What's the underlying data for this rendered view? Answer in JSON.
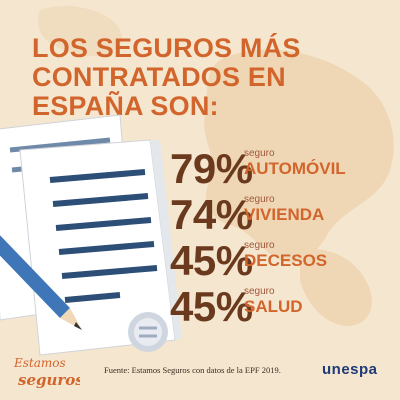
{
  "title": {
    "line1": "LOS SEGUROS MÁS",
    "line2": "CONTRATADOS EN",
    "line3": "ESPAÑA SON:"
  },
  "stats": [
    {
      "percent": "79%",
      "small": "seguro",
      "name": "AUTOMÓVIL"
    },
    {
      "percent": "74%",
      "small": "seguro",
      "name": "VIVIENDA"
    },
    {
      "percent": "45%",
      "small": "seguro",
      "name": "DECESOS"
    },
    {
      "percent": "45%",
      "small": "seguro",
      "name": "SALUD"
    }
  ],
  "footer": {
    "brand_left_line1": "Estamos",
    "brand_left_line2": "seguros",
    "source": "Fuente: Estamos Seguros con datos de la EPF 2019.",
    "brand_right": "unespa"
  },
  "colors": {
    "background": "#f5e6cf",
    "accent": "#d2652c",
    "dark_brown": "#6b3a1e",
    "brand_blue": "#1e3a78",
    "pen_blue": "#3f76b8"
  }
}
